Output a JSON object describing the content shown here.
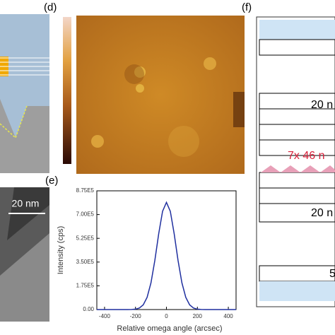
{
  "panels": {
    "d": "(d)",
    "e": "(e)",
    "f": "(f)"
  },
  "tem_scale": "20 nm",
  "stack_labels": [
    "20 n",
    "7x 46 n",
    "20 n",
    "5"
  ],
  "chart_data": {
    "type": "line",
    "x_label": "Relative omega angle (arcsec)",
    "y_label": "Intensity (cps)",
    "x": [
      -450,
      -400,
      -350,
      -300,
      -250,
      -225,
      -200,
      -175,
      -150,
      -125,
      -100,
      -75,
      -50,
      -25,
      0,
      25,
      50,
      75,
      100,
      125,
      150,
      175,
      200,
      225,
      250,
      300,
      350,
      400,
      450
    ],
    "series": [
      {
        "color": "#1f2f9f",
        "values": [
          0,
          0,
          0,
          0,
          0,
          700,
          3050,
          11200,
          34700,
          90100,
          196900,
          361800,
          558500,
          724400,
          790000,
          724400,
          558500,
          361800,
          196900,
          90100,
          34700,
          11200,
          3050,
          700,
          0,
          0,
          0,
          0,
          0
        ]
      }
    ],
    "xlim": [
      -450,
      450
    ],
    "xticks": [
      -400,
      -200,
      0,
      200,
      400
    ],
    "ylim": [
      0,
      875000
    ],
    "yticks": [
      {
        "value": 0,
        "label": "0.00"
      },
      {
        "value": 175000,
        "label": "1.75E5"
      },
      {
        "value": 350000,
        "label": "3.50E5"
      },
      {
        "value": 525000,
        "label": "5.25E5"
      },
      {
        "value": 700000,
        "label": "7.00E5"
      },
      {
        "value": 875000,
        "label": "8.75E5"
      }
    ]
  }
}
